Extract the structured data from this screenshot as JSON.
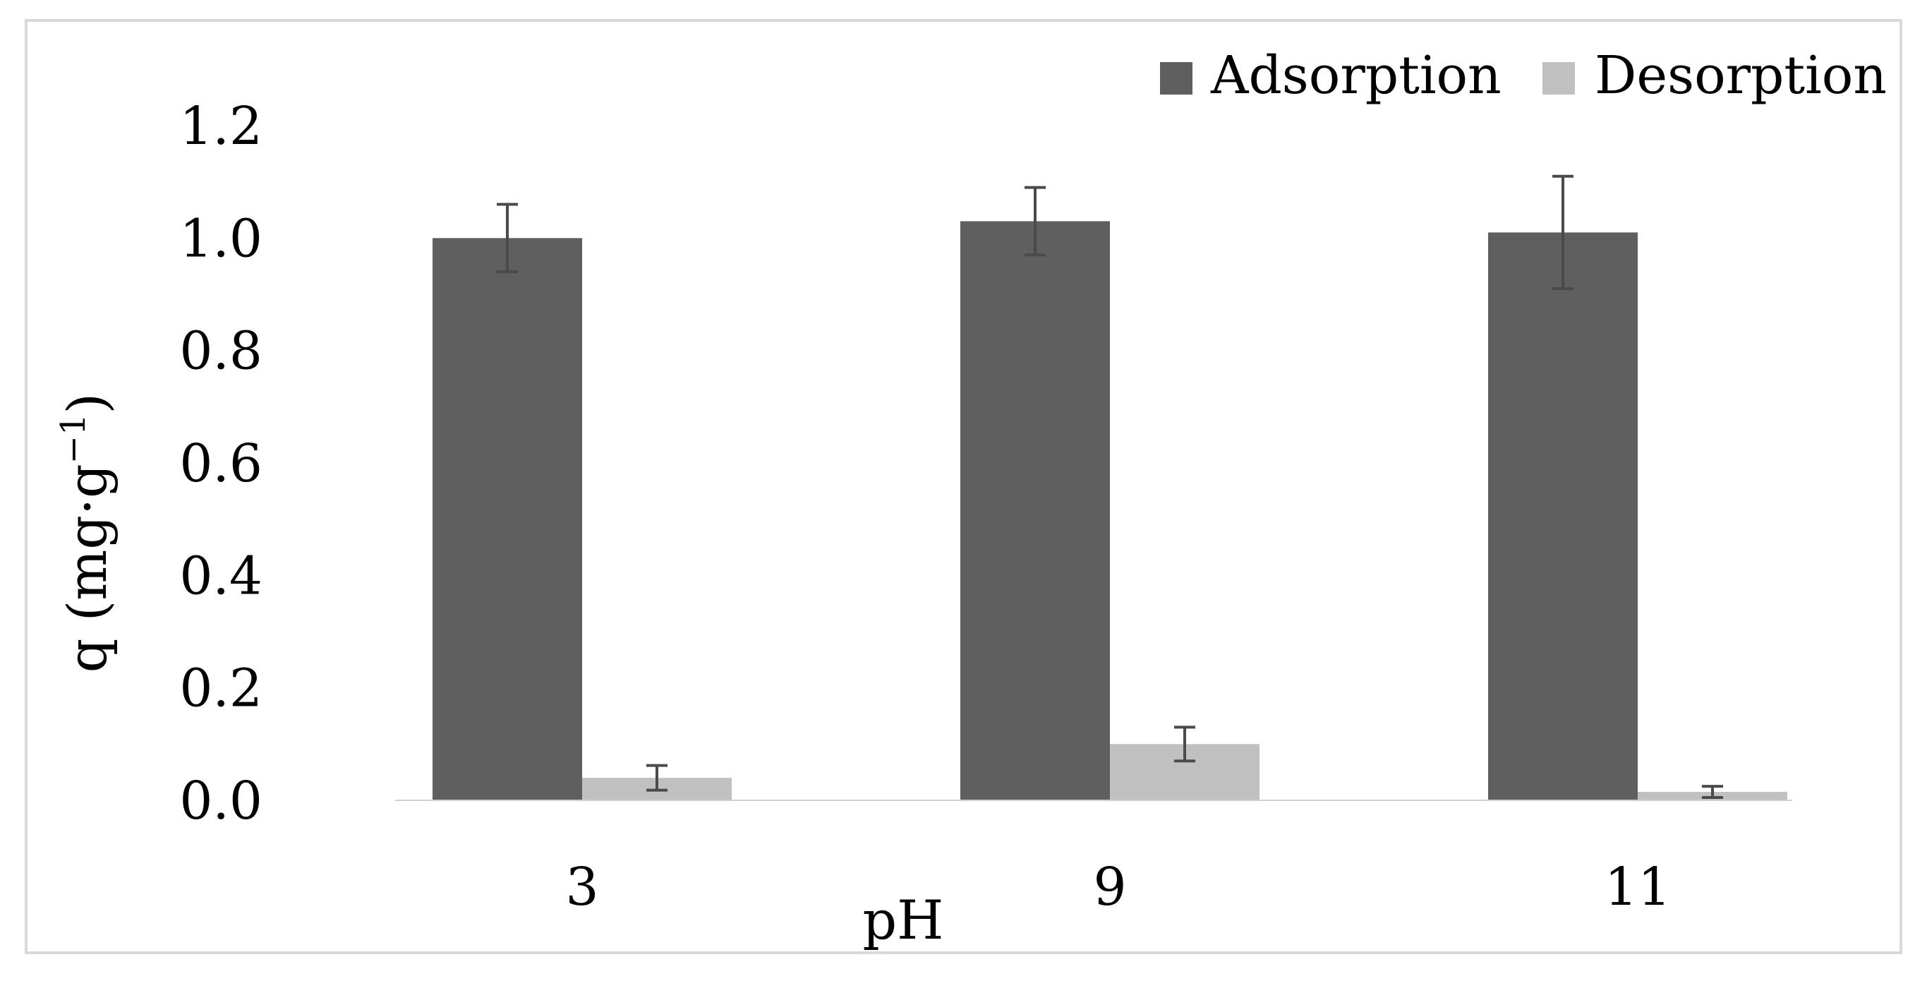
{
  "chart_data": {
    "type": "bar",
    "categories": [
      "3",
      "9",
      "11"
    ],
    "series": [
      {
        "name": "Adsorption",
        "values": [
          1.0,
          1.03,
          1.01
        ],
        "errors": [
          0.06,
          0.06,
          0.1
        ],
        "color": "#5f5f5f"
      },
      {
        "name": "Desorption",
        "values": [
          0.04,
          0.1,
          0.015
        ],
        "errors": [
          0.022,
          0.03,
          0.01
        ],
        "color": "#c0c0c0"
      }
    ],
    "title": "",
    "xlabel": "pH",
    "ylabel_main": "q (mg·g",
    "ylabel_sup": "−1",
    "ylabel_close": ")",
    "ylim": [
      0,
      1.2
    ],
    "yticks": [
      "0.0",
      "0.2",
      "0.4",
      "0.6",
      "0.8",
      "1.0",
      "1.2"
    ],
    "grid": false,
    "legend_position": "top-right",
    "frame_color": "#d9d9d9",
    "error_bar_color": "#4a4a4a"
  }
}
